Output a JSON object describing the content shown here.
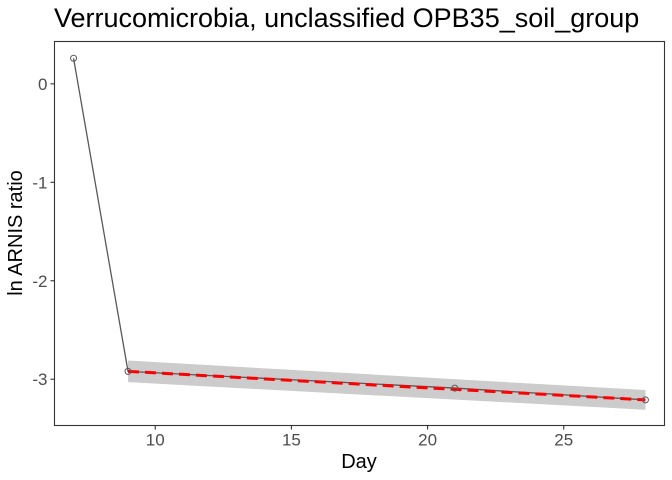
{
  "chart_data": {
    "type": "line",
    "title": "Verrucomicrobia, unclassified OPB35_soil_group",
    "xlabel": "Day",
    "ylabel": "ln ARNIS ratio",
    "xlim": [
      6.3,
      28.7
    ],
    "ylim": [
      -3.47,
      0.43
    ],
    "x_ticks": [
      10,
      15,
      20,
      25
    ],
    "y_ticks": [
      0,
      -1,
      -2,
      -3
    ],
    "x_tick_labels": [
      "10",
      "15",
      "20",
      "25"
    ],
    "y_tick_labels": [
      "0",
      "-1",
      "-2",
      "-3"
    ],
    "grid": false,
    "legend": "none",
    "series": [
      {
        "kind": "observed",
        "x": [
          7,
          9,
          21,
          28
        ],
        "y": [
          0.26,
          -2.92,
          -3.09,
          -3.21
        ],
        "color": "#595959"
      },
      {
        "kind": "fit",
        "x": [
          9,
          28
        ],
        "y": [
          -2.92,
          -3.21
        ],
        "ci_lower": [
          -3.03,
          -3.31
        ],
        "ci_upper": [
          -2.81,
          -3.11
        ],
        "color": "#ff0000",
        "band_color": "#cccccc"
      }
    ]
  }
}
